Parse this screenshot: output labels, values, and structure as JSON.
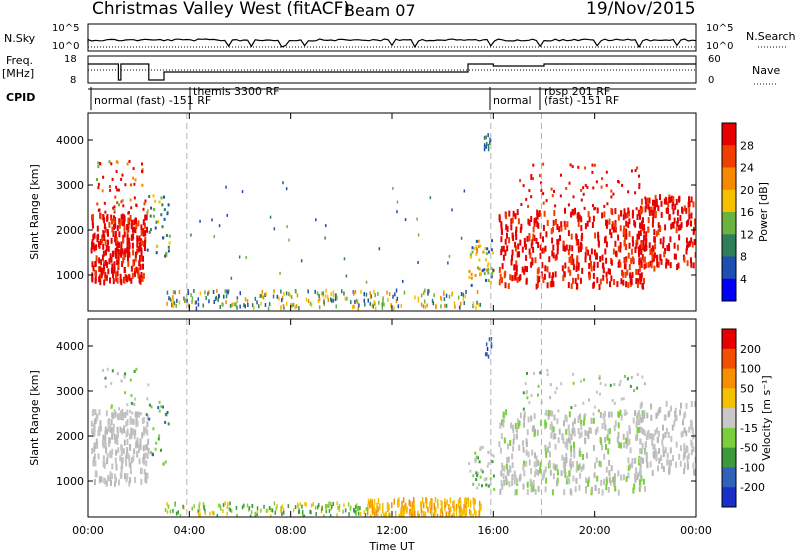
{
  "header": {
    "title": "Christmas Valley West (fitACF)",
    "beam": "Beam 07",
    "date": "19/Nov/2015"
  },
  "left_labels": {
    "nsky": "N.Sky",
    "freq": "Freq.",
    "freq_unit": "[MHz]",
    "cpid": "CPID"
  },
  "right_labels": {
    "nsearch": "N.Search",
    "nave": "Nave"
  },
  "axis_ticks": {
    "noise_left": [
      "10^5",
      "10^0"
    ],
    "noise_right": [
      "10^5",
      "10^0"
    ],
    "freq_left": [
      "18",
      "8"
    ],
    "nave_right": [
      "60",
      "0"
    ]
  },
  "cpid_segments": [
    {
      "label": "normal (fast) -151 RF",
      "start_h": 0.0
    },
    {
      "label": "themis 3300 RF",
      "start_h": 3.9
    },
    {
      "label": "normal",
      "start_h": 15.9
    },
    {
      "label": "rbsp 201 RF",
      "start_h": 17.5
    },
    {
      "label": "(fast) -151 RF",
      "start_h": 17.4
    }
  ],
  "chart_data": [
    {
      "type": "heatmap",
      "panel": "power",
      "ylabel": "Slant Range [km]",
      "xlabel": "",
      "xlim": [
        0,
        24
      ],
      "ylim": [
        200,
        4600
      ],
      "yticks": [
        "1000",
        "2000",
        "3000",
        "4000"
      ],
      "colorbar_label": "Power [dB]",
      "colorbar_ticks": [
        "4",
        "8",
        "12",
        "16",
        "20",
        "24",
        "28"
      ],
      "colorbar_colors": [
        "#0000f5",
        "#1e4fb0",
        "#2f7f5a",
        "#6bb33f",
        "#f5c000",
        "#f58a00",
        "#f04000",
        "#e60000"
      ]
    },
    {
      "type": "heatmap",
      "panel": "velocity",
      "ylabel": "Slant Range [km]",
      "xlabel": "Time UT",
      "xlim": [
        0,
        24
      ],
      "ylim": [
        200,
        4600
      ],
      "yticks": [
        "1000",
        "2000",
        "3000",
        "4000"
      ],
      "xticks": [
        "00:00",
        "04:00",
        "08:00",
        "12:00",
        "16:00",
        "20:00",
        "00:00"
      ],
      "colorbar_label": "Velocity [m s⁻¹]",
      "colorbar_ticks": [
        "200",
        "100",
        "50",
        "15",
        "-15",
        "-50",
        "-100",
        "-200"
      ],
      "colorbar_colors": [
        "#1a2fc8",
        "#2f62b8",
        "#3c9a3c",
        "#7ccf3c",
        "#c8c8c8",
        "#f5c000",
        "#f59000",
        "#f25000",
        "#e60000"
      ]
    }
  ],
  "style": {
    "grid_color": "#b4b4b4",
    "gray_scatter": "#c4c4c4"
  }
}
